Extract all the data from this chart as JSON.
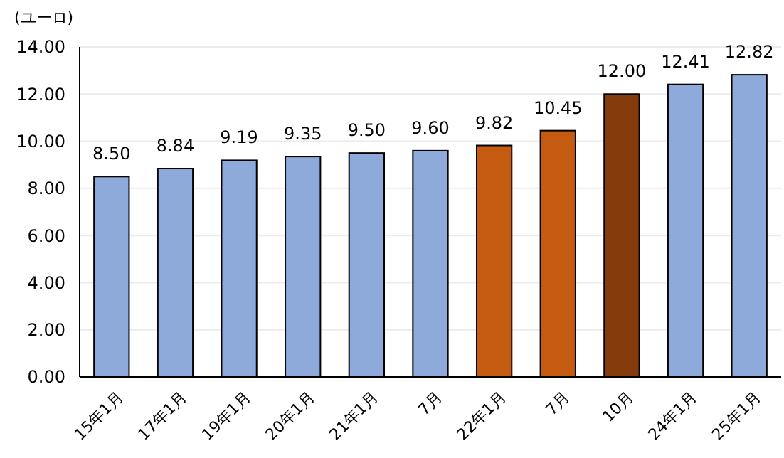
{
  "chart_data": {
    "type": "bar",
    "ylabel": "(ユーロ)",
    "categories": [
      "15年1月",
      "17年1月",
      "19年1月",
      "20年1月",
      "21年1月",
      "7月",
      "22年1月",
      "7月",
      "10月",
      "24年1月",
      "25年1月"
    ],
    "values": [
      8.5,
      8.84,
      9.19,
      9.35,
      9.5,
      9.6,
      9.82,
      10.45,
      12.0,
      12.41,
      12.82
    ],
    "value_labels": [
      "8.50",
      "8.84",
      "9.19",
      "9.35",
      "9.50",
      "9.60",
      "9.82",
      "10.45",
      "12.00",
      "12.41",
      "12.82"
    ],
    "colors": [
      "#8eaadb",
      "#8eaadb",
      "#8eaadb",
      "#8eaadb",
      "#8eaadb",
      "#8eaadb",
      "#c55a11",
      "#c55a11",
      "#843c0c",
      "#8eaadb",
      "#8eaadb"
    ],
    "ylim": [
      0,
      14
    ],
    "yticks": [
      {
        "value": 0,
        "label": "0.00"
      },
      {
        "value": 2,
        "label": "2.00"
      },
      {
        "value": 4,
        "label": "4.00"
      },
      {
        "value": 6,
        "label": "6.00"
      },
      {
        "value": 8,
        "label": "8.00"
      },
      {
        "value": 10,
        "label": "10.00"
      },
      {
        "value": 12,
        "label": "12.00"
      },
      {
        "value": 14,
        "label": "14.00"
      }
    ],
    "grid": "y"
  }
}
